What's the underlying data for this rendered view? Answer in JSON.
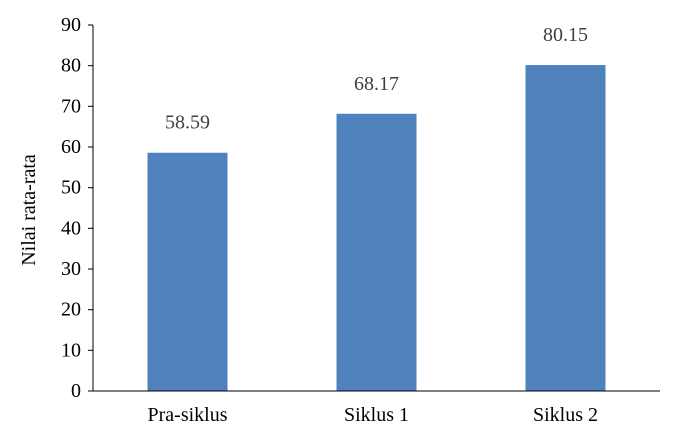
{
  "chart_data": {
    "type": "bar",
    "title": "",
    "xlabel": "",
    "ylabel": "Nilai rata-rata",
    "categories": [
      "Pra-siklus",
      "Siklus 1",
      "Siklus 2"
    ],
    "values": [
      58.59,
      68.17,
      80.15
    ],
    "data_labels": [
      "58.59",
      "68.17",
      "80.15"
    ],
    "ylim": [
      0,
      90
    ],
    "yticks": [
      "0",
      "10",
      "20",
      "30",
      "40",
      "50",
      "60",
      "70",
      "80",
      "90"
    ],
    "grid": false,
    "legend": "none",
    "bar_color": "#4F81BD"
  }
}
